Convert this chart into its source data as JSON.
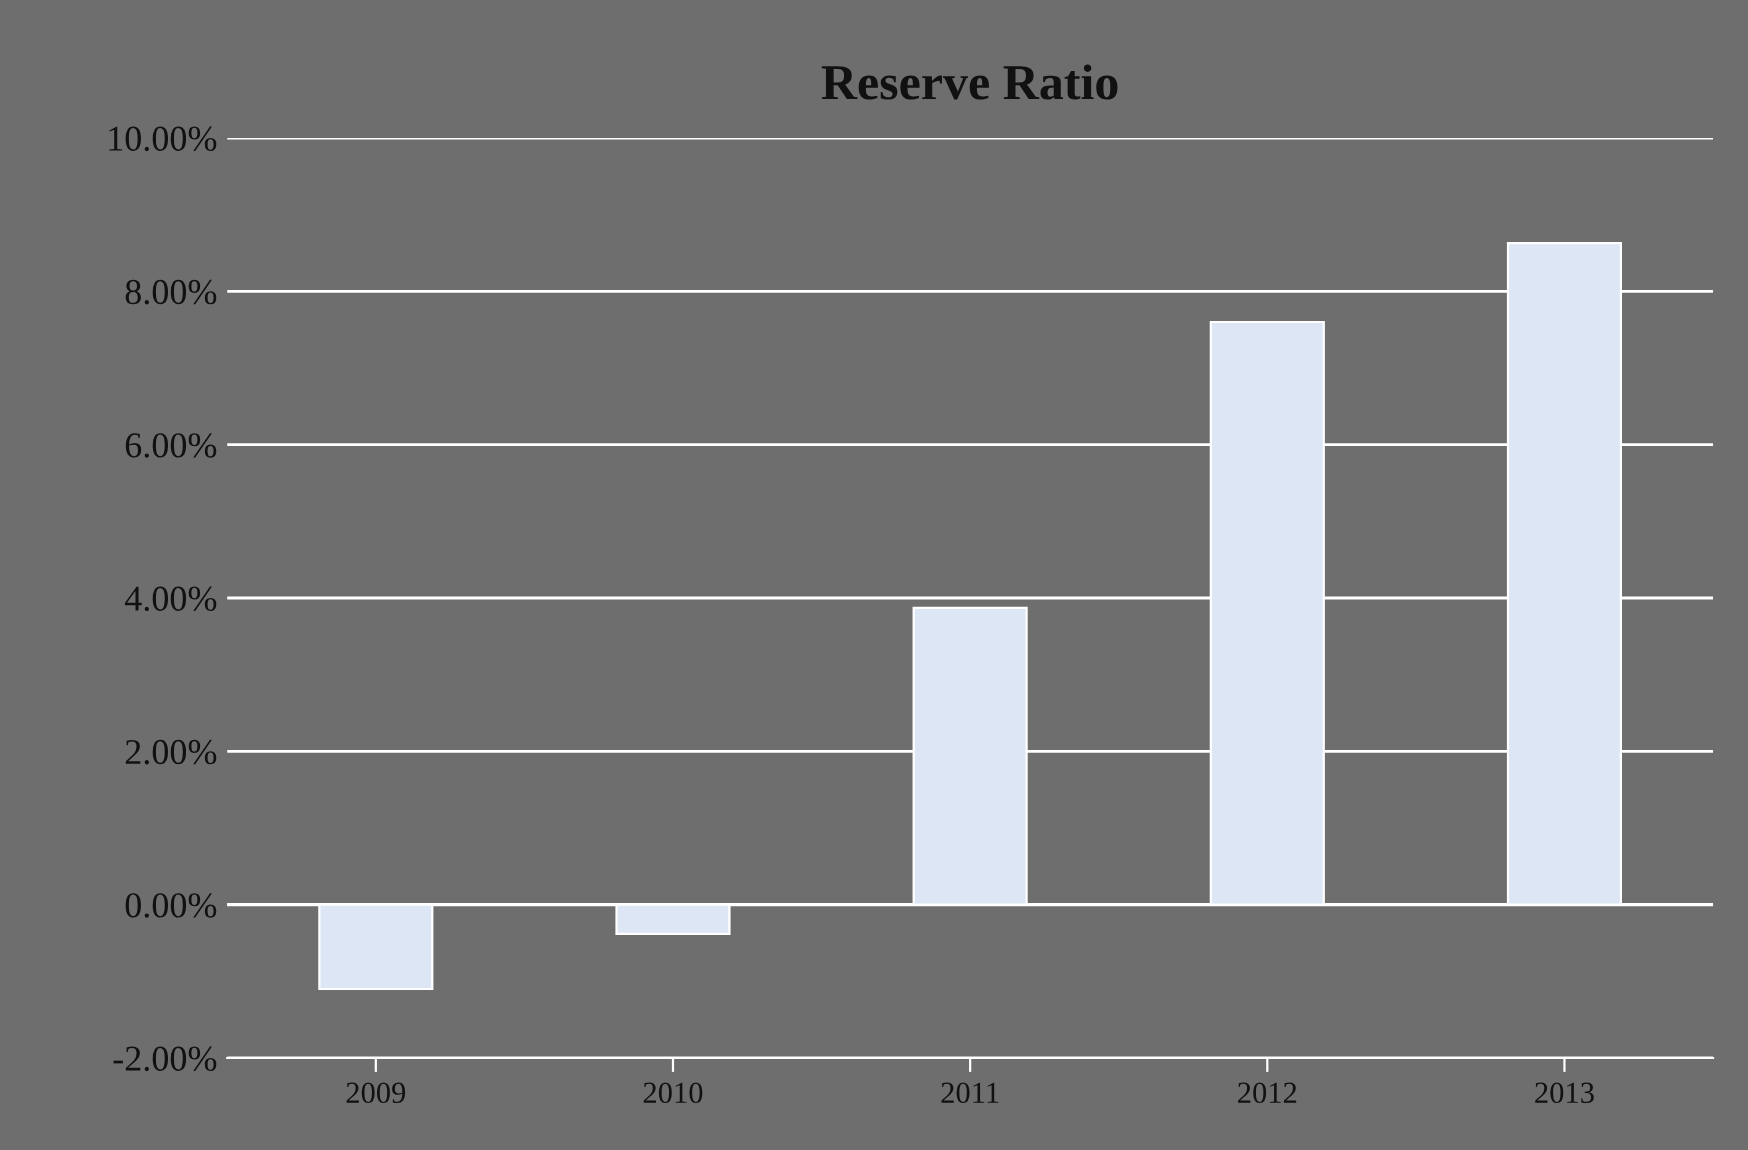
{
  "chart_data": {
    "type": "bar",
    "title": "Reserve Ratio",
    "categories": [
      "2009",
      "2010",
      "2011",
      "2012",
      "2013"
    ],
    "values": [
      -1.1,
      -0.38,
      3.87,
      7.6,
      8.63
    ],
    "color": "#dce6f5",
    "ylim": [
      -2,
      10
    ],
    "yticks": [
      {
        "value": -2,
        "label": "-2.00%"
      },
      {
        "value": 0,
        "label": "0.00%"
      },
      {
        "value": 2,
        "label": "2.00%"
      },
      {
        "value": 4,
        "label": "4.00%"
      },
      {
        "value": 6,
        "label": "6.00%"
      },
      {
        "value": 8,
        "label": "8.00%"
      },
      {
        "value": 10,
        "label": "10.00%"
      }
    ],
    "grid": "y",
    "legend": false
  }
}
